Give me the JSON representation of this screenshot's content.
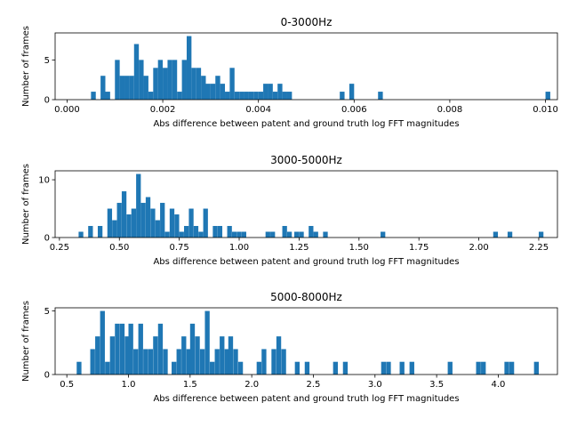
{
  "chart_data": [
    {
      "type": "bar",
      "title": "0-3000Hz",
      "xlabel": "Abs difference between patent and ground truth log FFT magnitudes",
      "ylabel": "Number of frames",
      "xlim": [
        -0.00025,
        0.01025
      ],
      "ylim": [
        0,
        8.4
      ],
      "bin_width": 0.0001,
      "xticks": [
        0.0,
        0.002,
        0.004,
        0.006,
        0.008,
        0.01
      ],
      "xtick_labels": [
        "0.000",
        "0.002",
        "0.004",
        "0.006",
        "0.008",
        "0.010"
      ],
      "yticks": [
        0,
        5
      ],
      "ytick_labels": [
        "0",
        "5"
      ],
      "color": "#1f77b4",
      "bins": [
        [
          0.0005,
          1
        ],
        [
          0.0007,
          3
        ],
        [
          0.0008,
          1
        ],
        [
          0.001,
          5
        ],
        [
          0.0011,
          3
        ],
        [
          0.0012,
          3
        ],
        [
          0.0013,
          3
        ],
        [
          0.0014,
          7
        ],
        [
          0.0015,
          5
        ],
        [
          0.0016,
          3
        ],
        [
          0.0017,
          1
        ],
        [
          0.0018,
          4
        ],
        [
          0.0019,
          5
        ],
        [
          0.002,
          4
        ],
        [
          0.0021,
          5
        ],
        [
          0.0022,
          5
        ],
        [
          0.0023,
          1
        ],
        [
          0.0024,
          5
        ],
        [
          0.0025,
          8
        ],
        [
          0.0026,
          4
        ],
        [
          0.0027,
          4
        ],
        [
          0.0028,
          3
        ],
        [
          0.0029,
          2
        ],
        [
          0.003,
          2
        ],
        [
          0.0031,
          3
        ],
        [
          0.0032,
          2
        ],
        [
          0.0033,
          1
        ],
        [
          0.0034,
          4
        ],
        [
          0.0035,
          1
        ],
        [
          0.0036,
          1
        ],
        [
          0.0037,
          1
        ],
        [
          0.0038,
          1
        ],
        [
          0.0039,
          1
        ],
        [
          0.004,
          1
        ],
        [
          0.0041,
          2
        ],
        [
          0.0042,
          2
        ],
        [
          0.0043,
          1
        ],
        [
          0.0044,
          2
        ],
        [
          0.0045,
          1
        ],
        [
          0.0046,
          1
        ],
        [
          0.0057,
          1
        ],
        [
          0.0059,
          2
        ],
        [
          0.0065,
          1
        ],
        [
          0.01,
          1
        ]
      ]
    },
    {
      "type": "bar",
      "title": "3000-5000Hz",
      "xlabel": "Abs difference between patent and ground truth log FFT magnitudes",
      "ylabel": "Number of frames",
      "xlim": [
        0.232,
        2.328
      ],
      "ylim": [
        0,
        11.55
      ],
      "bin_width": 0.0196,
      "xticks": [
        0.25,
        0.5,
        0.75,
        1.0,
        1.25,
        1.5,
        1.75,
        2.0,
        2.25
      ],
      "xtick_labels": [
        "0.25",
        "0.50",
        "0.75",
        "1.00",
        "1.25",
        "1.50",
        "1.75",
        "2.00",
        "2.25"
      ],
      "yticks": [
        0,
        10
      ],
      "ytick_labels": [
        "0",
        "10"
      ],
      "color": "#1f77b4",
      "bins": [
        [
          0.33,
          1
        ],
        [
          0.37,
          2
        ],
        [
          0.41,
          2
        ],
        [
          0.45,
          5
        ],
        [
          0.47,
          3
        ],
        [
          0.49,
          6
        ],
        [
          0.51,
          8
        ],
        [
          0.53,
          4
        ],
        [
          0.55,
          5
        ],
        [
          0.57,
          11
        ],
        [
          0.59,
          6
        ],
        [
          0.61,
          7
        ],
        [
          0.63,
          5
        ],
        [
          0.65,
          3
        ],
        [
          0.67,
          6
        ],
        [
          0.69,
          1
        ],
        [
          0.71,
          5
        ],
        [
          0.73,
          4
        ],
        [
          0.75,
          1
        ],
        [
          0.77,
          2
        ],
        [
          0.79,
          5
        ],
        [
          0.81,
          2
        ],
        [
          0.83,
          1
        ],
        [
          0.85,
          5
        ],
        [
          0.89,
          2
        ],
        [
          0.91,
          2
        ],
        [
          0.95,
          2
        ],
        [
          0.97,
          1
        ],
        [
          0.99,
          1
        ],
        [
          1.01,
          1
        ],
        [
          1.11,
          1
        ],
        [
          1.13,
          1
        ],
        [
          1.18,
          2
        ],
        [
          1.2,
          1
        ],
        [
          1.23,
          1
        ],
        [
          1.25,
          1
        ],
        [
          1.29,
          2
        ],
        [
          1.31,
          1
        ],
        [
          1.35,
          1
        ],
        [
          1.59,
          1
        ],
        [
          2.06,
          1
        ],
        [
          2.12,
          1
        ],
        [
          2.25,
          1
        ]
      ]
    },
    {
      "type": "bar",
      "title": "5000-8000Hz",
      "xlabel": "Abs difference between patent and ground truth log FFT magnitudes",
      "ylabel": "Number of frames",
      "xlim": [
        0.405,
        4.48
      ],
      "ylim": [
        0,
        5.25
      ],
      "bin_width": 0.0385,
      "xticks": [
        0.5,
        1.0,
        1.5,
        2.0,
        2.5,
        3.0,
        3.5,
        4.0
      ],
      "xtick_labels": [
        "0.5",
        "1.0",
        "1.5",
        "2.0",
        "2.5",
        "3.0",
        "3.5",
        "4.0"
      ],
      "yticks": [
        0,
        5
      ],
      "ytick_labels": [
        "0",
        "5"
      ],
      "color": "#1f77b4",
      "bins": [
        [
          0.58,
          1
        ],
        [
          0.69,
          2
        ],
        [
          0.73,
          3
        ],
        [
          0.77,
          5
        ],
        [
          0.81,
          1
        ],
        [
          0.85,
          3
        ],
        [
          0.89,
          4
        ],
        [
          0.93,
          4
        ],
        [
          0.97,
          3
        ],
        [
          1.0,
          4
        ],
        [
          1.04,
          2
        ],
        [
          1.08,
          4
        ],
        [
          1.12,
          2
        ],
        [
          1.16,
          2
        ],
        [
          1.2,
          3
        ],
        [
          1.24,
          4
        ],
        [
          1.28,
          2
        ],
        [
          1.35,
          1
        ],
        [
          1.39,
          2
        ],
        [
          1.43,
          3
        ],
        [
          1.47,
          2
        ],
        [
          1.5,
          4
        ],
        [
          1.54,
          3
        ],
        [
          1.58,
          2
        ],
        [
          1.62,
          5
        ],
        [
          1.66,
          1
        ],
        [
          1.7,
          2
        ],
        [
          1.74,
          3
        ],
        [
          1.78,
          2
        ],
        [
          1.81,
          3
        ],
        [
          1.85,
          2
        ],
        [
          1.89,
          1
        ],
        [
          2.04,
          1
        ],
        [
          2.08,
          2
        ],
        [
          2.16,
          2
        ],
        [
          2.2,
          3
        ],
        [
          2.24,
          2
        ],
        [
          2.35,
          1
        ],
        [
          2.43,
          1
        ],
        [
          2.66,
          1
        ],
        [
          2.74,
          1
        ],
        [
          3.05,
          1
        ],
        [
          3.09,
          1
        ],
        [
          3.2,
          1
        ],
        [
          3.28,
          1
        ],
        [
          3.59,
          1
        ],
        [
          3.82,
          1
        ],
        [
          3.86,
          1
        ],
        [
          4.05,
          1
        ],
        [
          4.09,
          1
        ],
        [
          4.29,
          1
        ]
      ]
    }
  ]
}
